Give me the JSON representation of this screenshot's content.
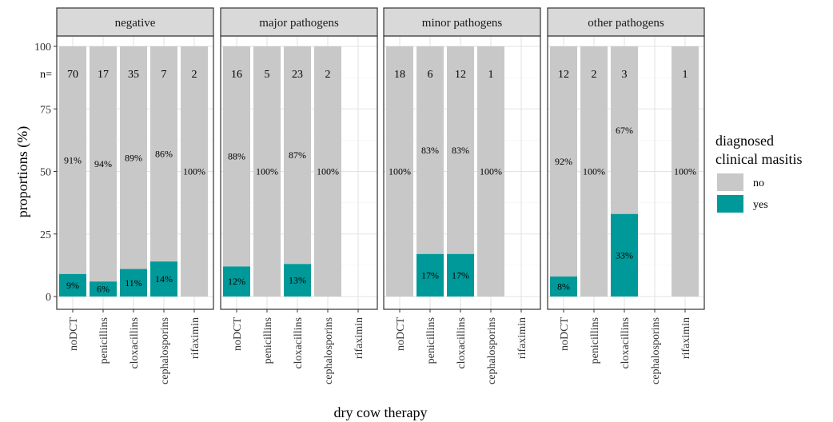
{
  "chart_data": {
    "type": "bar",
    "stacked": true,
    "xlabel": "dry cow therapy",
    "ylabel": "proportions (%)",
    "ylim": [
      0,
      100
    ],
    "yticks": [
      0,
      25,
      50,
      75,
      100
    ],
    "n_prefix": "n=",
    "grid": true,
    "legend_position": "right",
    "legend": {
      "title": [
        "diagnosed",
        "clinical masitis"
      ],
      "items": [
        {
          "key": "no",
          "label": "no",
          "color": "#c8c8c8"
        },
        {
          "key": "yes",
          "label": "yes",
          "color": "#009999"
        }
      ]
    },
    "categories": [
      "noDCT",
      "penicillins",
      "cloxacillins",
      "cephalosporins",
      "rifaximin"
    ],
    "panels": [
      {
        "title": "negative",
        "bars": [
          {
            "category": "noDCT",
            "n": "70",
            "yes": 9,
            "no": 91,
            "yes_label": "9%",
            "no_label": "91%"
          },
          {
            "category": "penicillins",
            "n": "17",
            "yes": 6,
            "no": 94,
            "yes_label": "6%",
            "no_label": "94%"
          },
          {
            "category": "cloxacillins",
            "n": "35",
            "yes": 11,
            "no": 89,
            "yes_label": "11%",
            "no_label": "89%"
          },
          {
            "category": "cephalosporins",
            "n": "7",
            "yes": 14,
            "no": 86,
            "yes_label": "14%",
            "no_label": "86%"
          },
          {
            "category": "rifaximin",
            "n": "2",
            "yes": 0,
            "no": 100,
            "yes_label": "",
            "no_label": "100%"
          }
        ]
      },
      {
        "title": "major pathogens",
        "bars": [
          {
            "category": "noDCT",
            "n": "16",
            "yes": 12,
            "no": 88,
            "yes_label": "12%",
            "no_label": "88%"
          },
          {
            "category": "penicillins",
            "n": "5",
            "yes": 0,
            "no": 100,
            "yes_label": "",
            "no_label": "100%"
          },
          {
            "category": "cloxacillins",
            "n": "23",
            "yes": 13,
            "no": 87,
            "yes_label": "13%",
            "no_label": "87%"
          },
          {
            "category": "cephalosporins",
            "n": "2",
            "yes": 0,
            "no": 100,
            "yes_label": "",
            "no_label": "100%"
          }
        ]
      },
      {
        "title": "minor pathogens",
        "bars": [
          {
            "category": "noDCT",
            "n": "18",
            "yes": 0,
            "no": 100,
            "yes_label": "",
            "no_label": "100%"
          },
          {
            "category": "penicillins",
            "n": "6",
            "yes": 17,
            "no": 83,
            "yes_label": "17%",
            "no_label": "83%"
          },
          {
            "category": "cloxacillins",
            "n": "12",
            "yes": 17,
            "no": 83,
            "yes_label": "17%",
            "no_label": "83%"
          },
          {
            "category": "cephalosporins",
            "n": "1",
            "yes": 0,
            "no": 100,
            "yes_label": "",
            "no_label": "100%"
          }
        ]
      },
      {
        "title": "other pathogens",
        "bars": [
          {
            "category": "noDCT",
            "n": "12",
            "yes": 8,
            "no": 92,
            "yes_label": "8%",
            "no_label": "92%"
          },
          {
            "category": "penicillins",
            "n": "2",
            "yes": 0,
            "no": 100,
            "yes_label": "",
            "no_label": "100%"
          },
          {
            "category": "cloxacillins",
            "n": "3",
            "yes": 33,
            "no": 67,
            "yes_label": "33%",
            "no_label": "67%"
          },
          {
            "category": "rifaximin",
            "n": "1",
            "yes": 0,
            "no": 100,
            "yes_label": "",
            "no_label": "100%"
          }
        ]
      }
    ]
  }
}
